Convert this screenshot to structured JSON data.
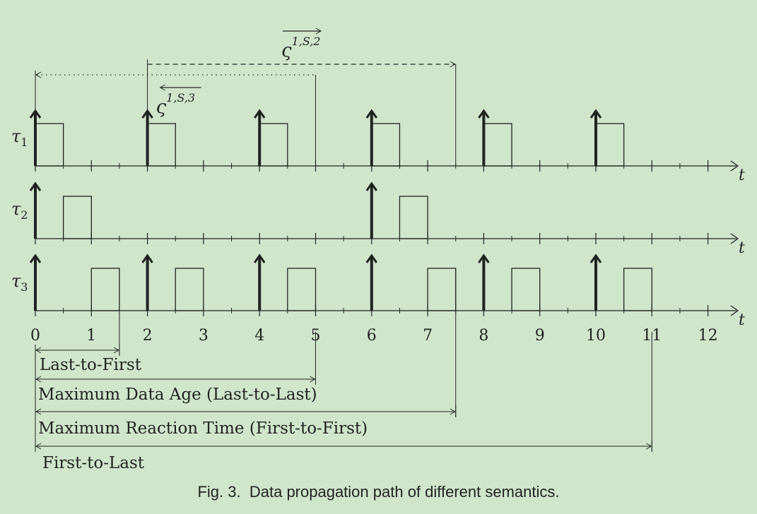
{
  "timeline": {
    "axis_symbol": "t",
    "ticks": [
      0,
      1,
      2,
      3,
      4,
      5,
      6,
      7,
      8,
      9,
      10,
      11,
      12
    ],
    "tick_labels": [
      "0",
      "1",
      "2",
      "3",
      "4",
      "5",
      "6",
      "7",
      "8",
      "9",
      "10",
      "11",
      "12"
    ]
  },
  "tasks": [
    {
      "name": "τ",
      "subscript": "1",
      "releases": [
        0,
        2,
        4,
        6,
        8,
        10
      ],
      "jobs": [
        [
          0,
          0.5
        ],
        [
          2,
          2.5
        ],
        [
          4,
          4.5
        ],
        [
          6,
          6.5
        ],
        [
          8,
          8.5
        ],
        [
          10,
          10.5
        ]
      ]
    },
    {
      "name": "τ",
      "subscript": "2",
      "releases": [
        0,
        6
      ],
      "jobs": [
        [
          0.5,
          1
        ],
        [
          6.5,
          7
        ]
      ]
    },
    {
      "name": "τ",
      "subscript": "3",
      "releases": [
        0,
        2,
        4,
        6,
        8,
        10
      ],
      "jobs": [
        [
          1,
          1.5
        ],
        [
          2.5,
          3
        ],
        [
          4.5,
          5
        ],
        [
          7,
          7.5
        ],
        [
          8.5,
          9
        ],
        [
          10.5,
          11
        ]
      ]
    }
  ],
  "paths": {
    "immediate_backward": {
      "symbol": "ς",
      "superscript": "1,S,3",
      "from": 0,
      "to": 5
    },
    "immediate_forward": {
      "symbol": "ς",
      "superscript": "1,S,2",
      "from": 2,
      "to": 7.5
    }
  },
  "semantics": [
    {
      "label": "Last-to-First",
      "from": 0,
      "to": 1.5
    },
    {
      "label": "Maximum Data Age (Last-to-Last)",
      "from": 0,
      "to": 5
    },
    {
      "label": "Maximum Reaction Time (First-to-First)",
      "from": 0,
      "to": 7.5
    },
    {
      "label": "First-to-Last",
      "from": 0,
      "to": 11
    }
  ],
  "caption": {
    "number": "Fig. 3.",
    "text": "Data propagation path of different semantics."
  },
  "colors": {
    "background": "#cfe6cb",
    "ink": "#222222"
  }
}
